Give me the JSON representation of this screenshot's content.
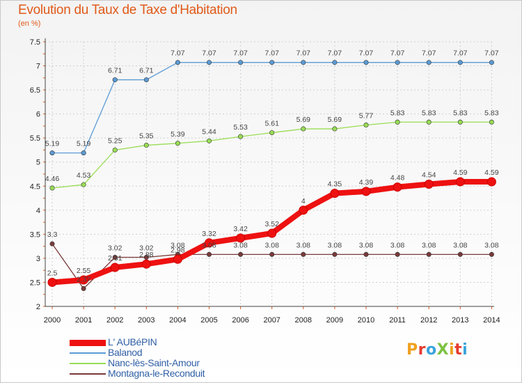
{
  "title": "Evolution du Taux de Taxe d'Habitation",
  "subtitle": "(en %)",
  "logo": {
    "text": "ProXiti",
    "colors": [
      "#f0a020",
      "#e63b2e",
      "#3aa3dc",
      "#7cc242",
      "#f0a020",
      "#e63b2e",
      "#3aa3dc"
    ]
  },
  "chart_data": {
    "type": "line",
    "x": [
      2000,
      2001,
      2002,
      2003,
      2004,
      2005,
      2006,
      2007,
      2008,
      2009,
      2010,
      2011,
      2012,
      2013,
      2014
    ],
    "ylim": [
      2,
      7.5
    ],
    "yticks": [
      "2",
      "2.5",
      "3",
      "3.5",
      "4",
      "4.5",
      "5",
      "5.5",
      "6",
      "6.5",
      "7",
      "7.5"
    ],
    "grid": true,
    "legend_position": "bottom-left",
    "series": [
      {
        "name": "L' AUBéPIN",
        "color": "#ee1111",
        "values": [
          2.5,
          2.55,
          2.81,
          2.88,
          2.98,
          3.32,
          3.42,
          3.52,
          4,
          4.35,
          4.39,
          4.48,
          4.54,
          4.59,
          4.59
        ],
        "labels": [
          "2.5",
          "2.55",
          "2.81",
          "2.88",
          "2.98",
          "3.32",
          "3.42",
          "3.52",
          "4",
          "4.35",
          "4.39",
          "4.48",
          "4.54",
          "4.59",
          "4.59"
        ]
      },
      {
        "name": "Balanod",
        "color": "#5b9bd5",
        "values": [
          5.19,
          5.19,
          6.71,
          6.71,
          7.07,
          7.07,
          7.07,
          7.07,
          7.07,
          7.07,
          7.07,
          7.07,
          7.07,
          7.07,
          7.07
        ],
        "labels": [
          "5.19",
          "5.19",
          "6.71",
          "6.71",
          "7.07",
          "7.07",
          "7.07",
          "7.07",
          "7.07",
          "7.07",
          "7.07",
          "7.07",
          "7.07",
          "7.07",
          "7.07"
        ]
      },
      {
        "name": "Nanc-lès-Saint-Amour",
        "color": "#99dd55",
        "values": [
          4.46,
          4.53,
          5.25,
          5.35,
          5.39,
          5.44,
          5.53,
          5.61,
          5.69,
          5.69,
          5.77,
          5.83,
          5.83,
          5.83,
          5.83
        ],
        "labels": [
          "4.46",
          "4.53",
          "5.25",
          "5.35",
          "5.39",
          "5.44",
          "5.53",
          "5.61",
          "5.69",
          "5.69",
          "5.77",
          "5.83",
          "5.83",
          "5.83",
          "5.83"
        ]
      },
      {
        "name": "Montagna-le-Reconduit",
        "color": "#7a3a3a",
        "values": [
          3.3,
          2.37,
          3.02,
          3.02,
          3.08,
          3.08,
          3.08,
          3.08,
          3.08,
          3.08,
          3.08,
          3.08,
          3.08,
          3.08,
          3.08
        ],
        "labels": [
          "3.3",
          "2.37",
          "3.02",
          "3.02",
          "3.08",
          "3.08",
          "3.08",
          "3.08",
          "3.08",
          "3.08",
          "3.08",
          "3.08",
          "3.08",
          "3.08",
          "3.08"
        ]
      }
    ]
  }
}
